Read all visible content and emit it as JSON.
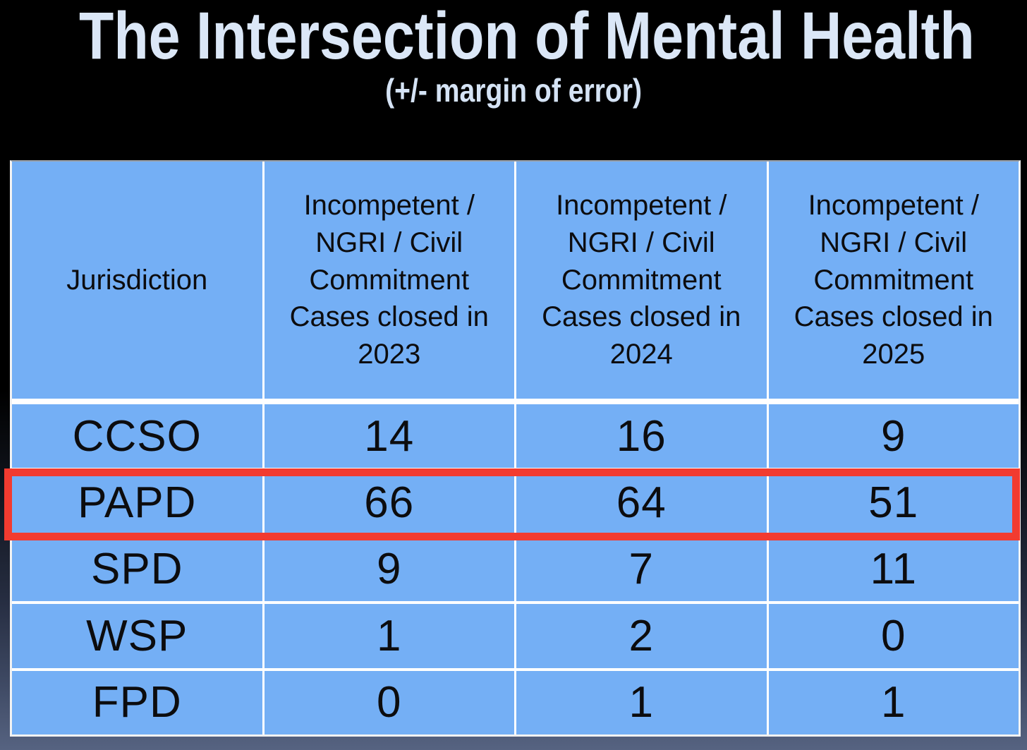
{
  "slide": {
    "title": "The Intersection of Mental Health",
    "subtitle": "(+/- margin of error)",
    "background_top_color": "#000000",
    "background_bottom_color": "#566381",
    "title_color": "#dbe7f7"
  },
  "table": {
    "cell_color": "#74aff5",
    "grid_line_color": "#ffffff",
    "text_color": "#0c0c0e",
    "highlight_color": "#f23b30",
    "years": [
      "2023",
      "2024",
      "2025"
    ],
    "columns": [
      {
        "label": "Jurisdiction"
      },
      {
        "label": "Incompetent /\nNGRI / Civil\nCommitment\nCases closed in\n2023"
      },
      {
        "label": "Incompetent /\nNGRI / Civil\nCommitment\nCases closed in\n2024"
      },
      {
        "label": "Incompetent /\nNGRI / Civil\nCommitment\nCases closed in\n2025"
      }
    ],
    "rows": [
      {
        "jurisdiction": "CCSO",
        "values": [
          "14",
          "16",
          "9"
        ],
        "highlighted": false
      },
      {
        "jurisdiction": "PAPD",
        "values": [
          "66",
          "64",
          "51"
        ],
        "highlighted": true
      },
      {
        "jurisdiction": "SPD",
        "values": [
          "9",
          "7",
          "11"
        ],
        "highlighted": false
      },
      {
        "jurisdiction": "WSP",
        "values": [
          "1",
          "2",
          "0"
        ],
        "highlighted": false
      },
      {
        "jurisdiction": "FPD",
        "values": [
          "0",
          "1",
          "1"
        ],
        "highlighted": false
      }
    ]
  },
  "chart_data": {
    "type": "table",
    "title": "The Intersection of Mental Health",
    "subtitle": "(+/- margin of error)",
    "columns": [
      "Jurisdiction",
      "Incompetent / NGRI / Civil Commitment Cases closed in 2023",
      "Incompetent / NGRI / Civil Commitment Cases closed in 2024",
      "Incompetent / NGRI / Civil Commitment Cases closed in 2025"
    ],
    "rows": [
      [
        "CCSO",
        14,
        16,
        9
      ],
      [
        "PAPD",
        66,
        64,
        51
      ],
      [
        "SPD",
        9,
        7,
        11
      ],
      [
        "WSP",
        1,
        2,
        0
      ],
      [
        "FPD",
        0,
        1,
        1
      ]
    ],
    "highlighted_row": "PAPD",
    "layout": {
      "header_fill": "#74aff5",
      "body_fill": "#74aff5",
      "grid": true
    }
  }
}
